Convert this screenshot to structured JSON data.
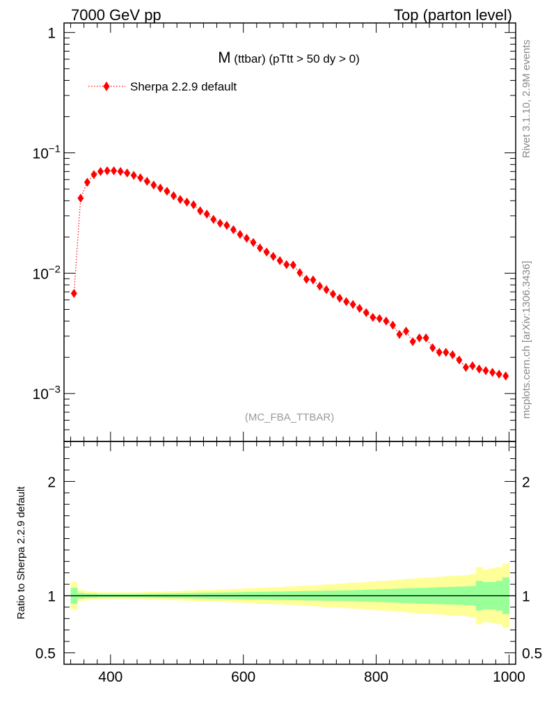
{
  "header": {
    "left_label": "7000 GeV pp",
    "right_label": "Top (parton level)"
  },
  "side_labels": {
    "rivet": "Rivet 3.1.10,  2.9M events",
    "source": "mcplots.cern.ch [arXiv:1306.3436]"
  },
  "chart_data": [
    {
      "type": "line",
      "panel": "main",
      "title_main": "M",
      "title_sub": " (ttbar) (pTtt > 50 dy > 0)",
      "watermark": "(MC_FBA_TTBAR)",
      "yscale": "log",
      "xlim": [
        330,
        1010
      ],
      "ylim": [
        0.0004,
        1.2
      ],
      "y_ticks": [
        {
          "value": 1,
          "label": "1"
        },
        {
          "value": 0.1,
          "label": "10",
          "exp": "−1"
        },
        {
          "value": 0.01,
          "label": "10",
          "exp": "−2"
        },
        {
          "value": 0.001,
          "label": "10",
          "exp": "−3"
        }
      ],
      "legend": {
        "position": "top-left"
      },
      "series": [
        {
          "name": "Sherpa 2.2.9 default",
          "color": "#ff0000",
          "marker": "diamond",
          "line": "dotted",
          "x": [
            345,
            355,
            365,
            375,
            385,
            395,
            405,
            415,
            425,
            435,
            445,
            455,
            465,
            475,
            485,
            495,
            505,
            515,
            525,
            535,
            545,
            555,
            565,
            575,
            585,
            595,
            605,
            615,
            625,
            635,
            645,
            655,
            665,
            675,
            685,
            695,
            705,
            715,
            725,
            735,
            745,
            755,
            765,
            775,
            785,
            795,
            805,
            815,
            825,
            835,
            845,
            855,
            865,
            875,
            885,
            895,
            905,
            915,
            925,
            935,
            945,
            955,
            965,
            975,
            985,
            995
          ],
          "y": [
            0.0068,
            0.042,
            0.057,
            0.066,
            0.07,
            0.071,
            0.071,
            0.07,
            0.068,
            0.065,
            0.062,
            0.058,
            0.054,
            0.051,
            0.048,
            0.044,
            0.041,
            0.039,
            0.037,
            0.033,
            0.031,
            0.028,
            0.026,
            0.025,
            0.023,
            0.021,
            0.0195,
            0.018,
            0.0162,
            0.015,
            0.0138,
            0.0127,
            0.0118,
            0.0117,
            0.0101,
            0.0089,
            0.0088,
            0.0078,
            0.0073,
            0.0067,
            0.0062,
            0.0058,
            0.0055,
            0.0051,
            0.0047,
            0.0043,
            0.0042,
            0.004,
            0.0037,
            0.0031,
            0.0033,
            0.0027,
            0.0029,
            0.0029,
            0.0024,
            0.0022,
            0.0022,
            0.0021,
            0.0019,
            0.00165,
            0.0017,
            0.0016,
            0.00155,
            0.0015,
            0.00145,
            0.0014
          ]
        }
      ]
    },
    {
      "type": "area",
      "panel": "ratio",
      "ylabel": "Ratio to Sherpa 2.2.9 default",
      "xlim": [
        330,
        1010
      ],
      "ylim": [
        0.4,
        2.35
      ],
      "x_ticks": [
        400,
        600,
        800,
        1000
      ],
      "y_ticks": [
        {
          "value": 0.5,
          "label": "0.5"
        },
        {
          "value": 1,
          "label": "1"
        },
        {
          "value": 2,
          "label": "2"
        }
      ],
      "reference_line": 1,
      "bands": {
        "yellow_color": "#ffff99",
        "green_color": "#99ff99",
        "x_edges": [
          340,
          350,
          360,
          370,
          380,
          390,
          400,
          410,
          420,
          430,
          440,
          450,
          460,
          470,
          480,
          490,
          500,
          510,
          520,
          530,
          540,
          550,
          560,
          570,
          580,
          590,
          600,
          610,
          620,
          630,
          640,
          650,
          660,
          670,
          680,
          690,
          700,
          710,
          720,
          730,
          740,
          750,
          760,
          770,
          780,
          790,
          800,
          810,
          820,
          830,
          840,
          850,
          860,
          870,
          880,
          890,
          900,
          910,
          920,
          930,
          940,
          950,
          960,
          970,
          980,
          990,
          1000
        ],
        "yellow_halfwidth": [
          0.12,
          0.05,
          0.04,
          0.035,
          0.03,
          0.03,
          0.03,
          0.03,
          0.03,
          0.03,
          0.03,
          0.035,
          0.035,
          0.035,
          0.04,
          0.04,
          0.04,
          0.045,
          0.045,
          0.05,
          0.05,
          0.05,
          0.055,
          0.055,
          0.06,
          0.06,
          0.065,
          0.065,
          0.07,
          0.07,
          0.075,
          0.075,
          0.08,
          0.08,
          0.085,
          0.09,
          0.09,
          0.095,
          0.1,
          0.1,
          0.105,
          0.11,
          0.115,
          0.115,
          0.12,
          0.125,
          0.13,
          0.13,
          0.135,
          0.14,
          0.145,
          0.15,
          0.155,
          0.16,
          0.16,
          0.165,
          0.17,
          0.175,
          0.175,
          0.18,
          0.19,
          0.25,
          0.23,
          0.24,
          0.25,
          0.28
        ],
        "green_halfwidth": [
          0.07,
          0.025,
          0.02,
          0.018,
          0.015,
          0.015,
          0.015,
          0.015,
          0.015,
          0.015,
          0.016,
          0.017,
          0.018,
          0.019,
          0.02,
          0.021,
          0.022,
          0.023,
          0.024,
          0.025,
          0.026,
          0.027,
          0.028,
          0.029,
          0.03,
          0.031,
          0.032,
          0.033,
          0.034,
          0.035,
          0.036,
          0.037,
          0.038,
          0.039,
          0.04,
          0.041,
          0.042,
          0.043,
          0.044,
          0.045,
          0.046,
          0.047,
          0.048,
          0.05,
          0.052,
          0.054,
          0.056,
          0.058,
          0.06,
          0.062,
          0.064,
          0.066,
          0.068,
          0.07,
          0.072,
          0.074,
          0.076,
          0.078,
          0.08,
          0.082,
          0.085,
          0.13,
          0.12,
          0.12,
          0.13,
          0.16
        ]
      }
    }
  ]
}
